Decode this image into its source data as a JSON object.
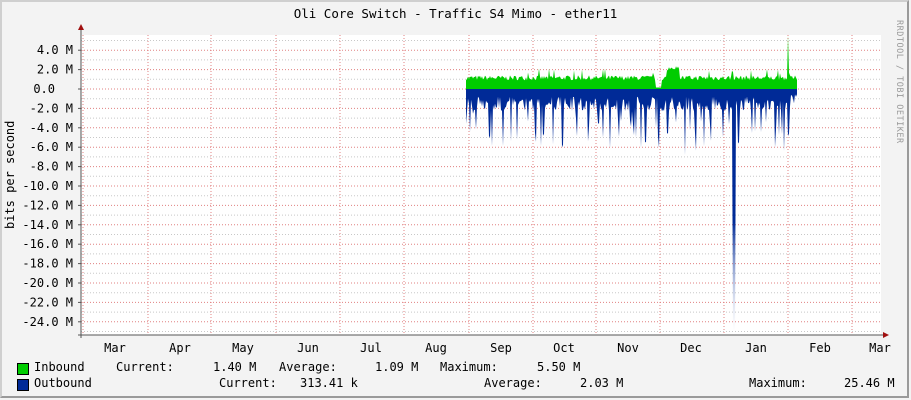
{
  "title": "Oli Core Switch - Traffic S4 Mimo - ether11",
  "watermark": "RRDTOOL / TOBI OETIKER",
  "colors": {
    "inbound": "#00cc00",
    "outbound": "#002a97",
    "grid_major": "#e08080",
    "grid_minor": "#c8c8c8",
    "axis": "#555555",
    "arrow": "#a01010"
  },
  "legend": {
    "inbound": {
      "label": "Inbound",
      "current_label": "Current:",
      "current": "1.40 M",
      "average_label": "Average:",
      "average": "1.09 M",
      "maximum_label": "Maximum:",
      "maximum": "5.50 M"
    },
    "outbound": {
      "label": "Outbound",
      "current_label": "Current:",
      "current": "313.41 k",
      "average_label": "Average:",
      "average": "2.03 M",
      "maximum_label": "Maximum:",
      "maximum": "25.46 M"
    }
  },
  "chart_data": {
    "type": "area",
    "title": "Oli Core Switch - Traffic S4 Mimo - ether11",
    "xlabel": "",
    "ylabel": "bits per second",
    "x_ticks": [
      "Mar",
      "Apr",
      "May",
      "Jun",
      "Jul",
      "Aug",
      "Sep",
      "Oct",
      "Nov",
      "Dec",
      "Jan",
      "Feb",
      "Mar"
    ],
    "y_ticks": [
      "4.0 M",
      "2.0 M",
      "0.0",
      "-2.0 M",
      "-4.0 M",
      "-6.0 M",
      "-8.0 M",
      "-10.0 M",
      "-12.0 M",
      "-14.0 M",
      "-16.0 M",
      "-18.0 M",
      "-20.0 M",
      "-22.0 M",
      "-24.0 M"
    ],
    "ylim": [
      -25.5,
      5.5
    ],
    "grid": true,
    "legend_position": "bottom",
    "series": [
      {
        "name": "Inbound",
        "color": "#00cc00",
        "direction": "positive",
        "x": [
          "Aug-28",
          "Sep-15",
          "Oct-01",
          "Oct-15",
          "Nov-01",
          "Nov-15",
          "Nov-25",
          "Dec-01",
          "Dec-15",
          "Jan-01",
          "Jan-15",
          "Jan-25",
          "Jan-28"
        ],
        "values": [
          1.0,
          0.9,
          1.0,
          1.1,
          1.2,
          1.1,
          0.1,
          2.2,
          0.9,
          1.0,
          1.1,
          5.5,
          1.4
        ],
        "current": 1.4,
        "average": 1.09,
        "maximum": 5.5,
        "unit": "M"
      },
      {
        "name": "Outbound",
        "color": "#002a97",
        "direction": "negative",
        "x": [
          "Aug-28",
          "Sep-10",
          "Sep-20",
          "Oct-01",
          "Oct-15",
          "Nov-01",
          "Nov-15",
          "Nov-25",
          "Dec-01",
          "Dec-15",
          "Dec-25",
          "Jan-01",
          "Jan-15",
          "Jan-25",
          "Jan-28"
        ],
        "values": [
          -1.5,
          -3.5,
          -4.5,
          -3.0,
          -5.5,
          -4.0,
          -5.0,
          -6.0,
          -2.5,
          -7.0,
          -4.0,
          -25.46,
          -3.0,
          -4.0,
          -0.3
        ],
        "current": 0.31341,
        "average": 2.03,
        "maximum": 25.46,
        "unit": "M"
      }
    ]
  }
}
